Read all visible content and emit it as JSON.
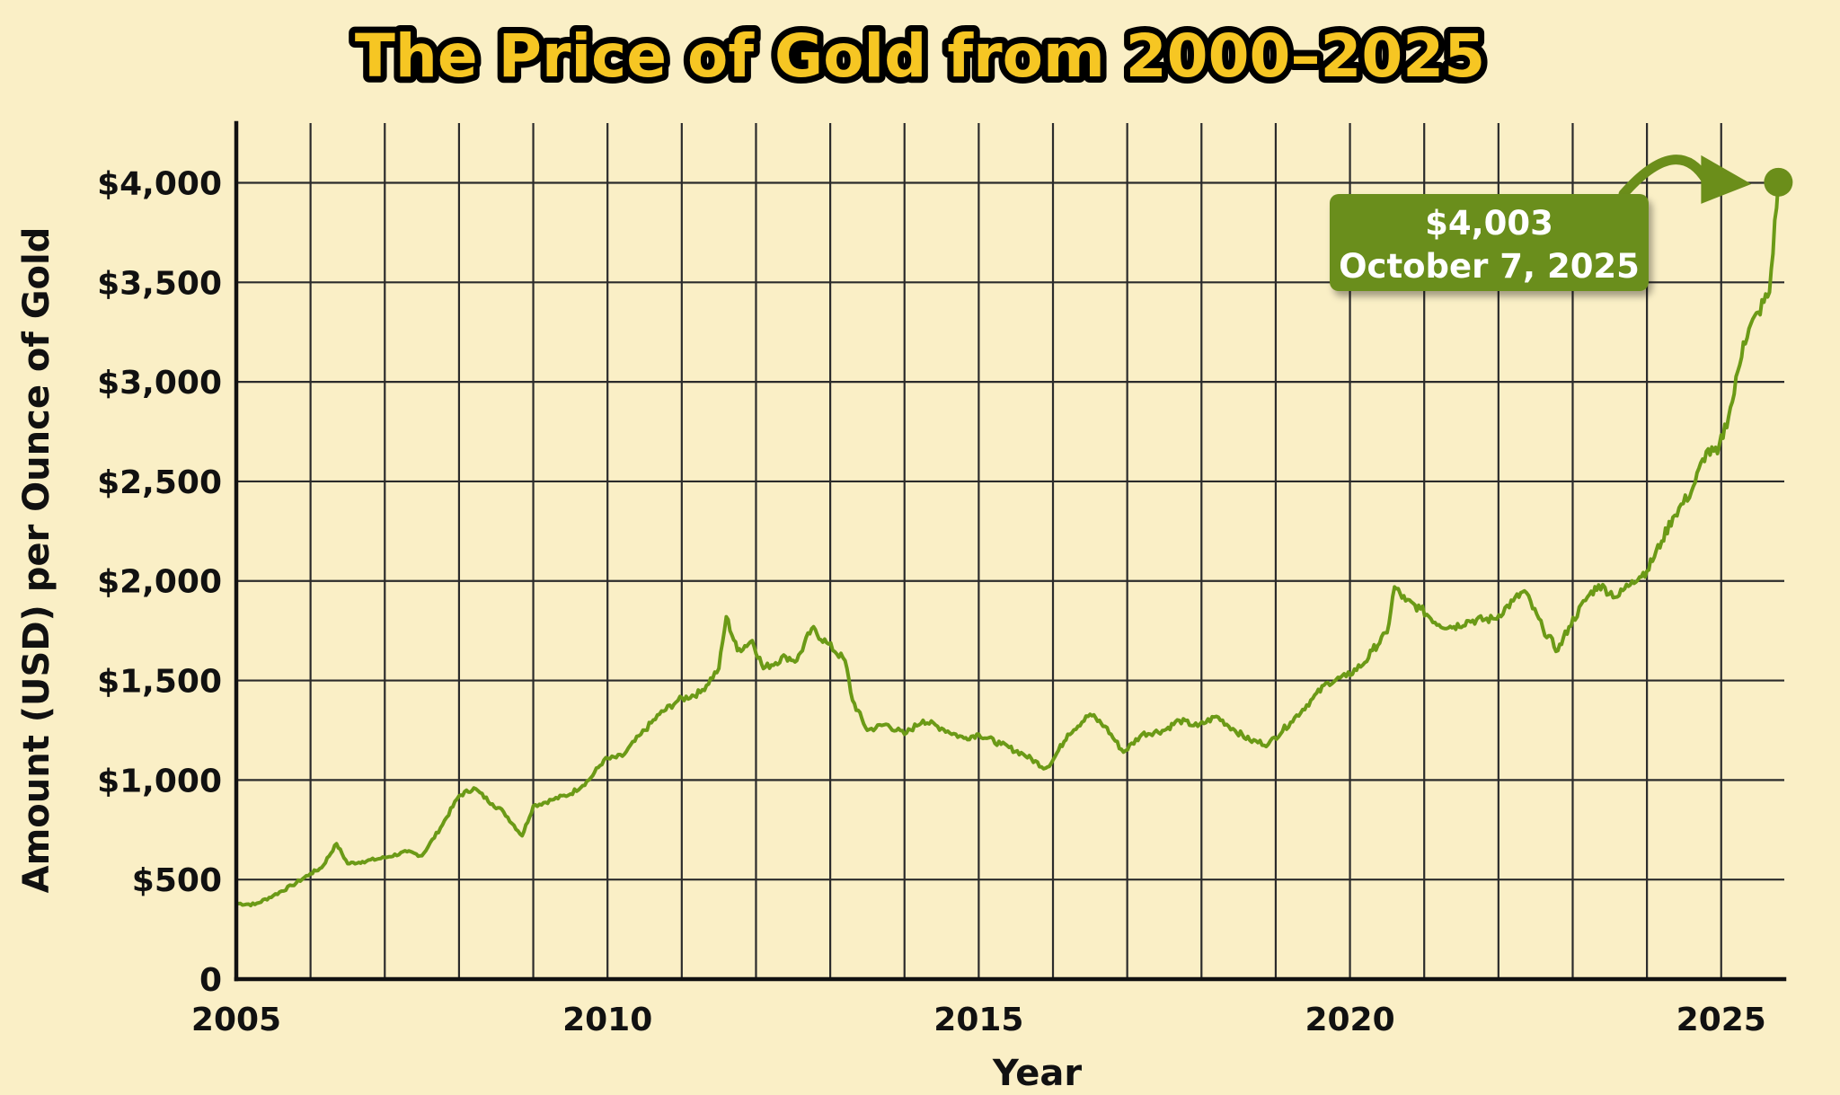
{
  "chart_data": {
    "type": "line",
    "title": "The Price of Gold from 2000–2025",
    "xlabel": "Year",
    "ylabel": "Amount (USD) per Ounce of Gold",
    "xlim": [
      2005,
      2025.85
    ],
    "ylim": [
      0,
      4300
    ],
    "x_ticks": [
      2005,
      2010,
      2015,
      2020,
      2025
    ],
    "x_tick_labels": [
      "2005",
      "2010",
      "2015",
      "2020",
      "2025"
    ],
    "y_ticks": [
      0,
      500,
      1000,
      1500,
      2000,
      2500,
      3000,
      3500,
      4000
    ],
    "y_tick_labels": [
      "0",
      "$500",
      "$1,000",
      "$1,500",
      "$2,000",
      "$2,500",
      "$3,000",
      "$3,500",
      "$4,000"
    ],
    "grid": true,
    "line_color": "#6b9a16",
    "series": [
      {
        "x": [
          2005.0,
          2005.25,
          2005.5,
          2005.75,
          2006.0,
          2006.15,
          2006.35,
          2006.5,
          2006.7,
          2007.0,
          2007.3,
          2007.5,
          2007.75,
          2008.0,
          2008.2,
          2008.45,
          2008.6,
          2008.85,
          2009.0,
          2009.25,
          2009.5,
          2009.75,
          2009.95,
          2010.2,
          2010.45,
          2010.7,
          2010.95,
          2011.25,
          2011.5,
          2011.6,
          2011.75,
          2011.95,
          2012.1,
          2012.4,
          2012.55,
          2012.75,
          2012.95,
          2013.2,
          2013.3,
          2013.5,
          2013.75,
          2014.0,
          2014.25,
          2014.5,
          2014.8,
          2015.0,
          2015.3,
          2015.6,
          2015.9,
          2016.0,
          2016.2,
          2016.5,
          2016.7,
          2016.95,
          2017.2,
          2017.5,
          2017.7,
          2017.95,
          2018.2,
          2018.45,
          2018.65,
          2018.9,
          2019.2,
          2019.5,
          2019.7,
          2019.95,
          2020.2,
          2020.3,
          2020.5,
          2020.6,
          2020.75,
          2020.95,
          2021.2,
          2021.4,
          2021.6,
          2021.95,
          2022.2,
          2022.35,
          2022.6,
          2022.8,
          2022.95,
          2023.2,
          2023.35,
          2023.6,
          2023.8,
          2024.0,
          2024.2,
          2024.35,
          2024.6,
          2024.8,
          2024.95,
          2025.15,
          2025.3,
          2025.5,
          2025.65,
          2025.77
        ],
        "y": [
          380,
          375,
          420,
          470,
          530,
          560,
          680,
          580,
          590,
          610,
          640,
          620,
          760,
          920,
          960,
          880,
          840,
          720,
          870,
          900,
          930,
          1000,
          1100,
          1120,
          1230,
          1330,
          1400,
          1440,
          1560,
          1820,
          1650,
          1700,
          1560,
          1620,
          1600,
          1760,
          1690,
          1600,
          1400,
          1250,
          1280,
          1230,
          1300,
          1260,
          1210,
          1230,
          1180,
          1130,
          1060,
          1100,
          1230,
          1330,
          1270,
          1140,
          1230,
          1250,
          1300,
          1270,
          1320,
          1250,
          1200,
          1180,
          1290,
          1410,
          1490,
          1520,
          1590,
          1650,
          1740,
          1970,
          1900,
          1860,
          1780,
          1770,
          1800,
          1810,
          1900,
          1950,
          1760,
          1650,
          1770,
          1920,
          1980,
          1920,
          2000,
          2050,
          2200,
          2320,
          2450,
          2650,
          2640,
          2900,
          3200,
          3350,
          3450,
          4003
        ]
      }
    ],
    "annotation": {
      "value_label": "$4,003",
      "date_label": "October 7, 2025",
      "x": 2025.77,
      "y": 4003
    },
    "callout_color": "#6b8e1a"
  }
}
